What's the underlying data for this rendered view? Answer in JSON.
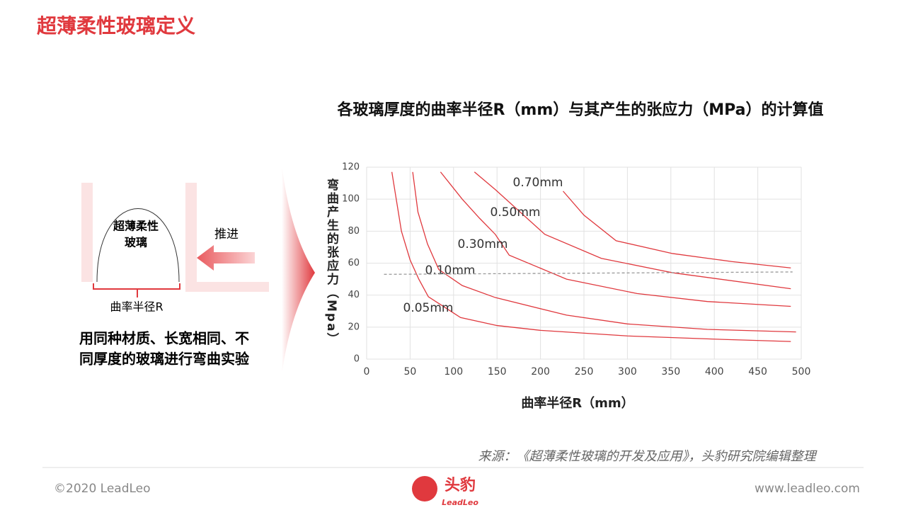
{
  "header": {
    "title": "超薄柔性玻璃定义"
  },
  "diagram": {
    "glass_label": [
      "超薄柔性",
      "玻璃"
    ],
    "push_label": "推进",
    "radius_label": "曲率半径R",
    "caption": [
      "用同种材质、长宽相同、不",
      "同厚度的玻璃进行弯曲实验"
    ]
  },
  "chart_data": {
    "type": "line",
    "title": "各玻璃厚度的曲率半径R（mm）与其产生的张应力（MPa）的计算值",
    "x_label": "曲率半径R（mm）",
    "y_label": "弯曲产生的张应力（Mpa）",
    "xlim": [
      0,
      500
    ],
    "xticks": [
      0,
      50,
      100,
      150,
      200,
      250,
      300,
      350,
      400,
      450,
      500
    ],
    "ylim": [
      0,
      120
    ],
    "yticks": [
      0,
      20,
      40,
      60,
      80,
      100,
      120
    ],
    "grid": true,
    "series": [
      {
        "name": "0.05mm",
        "color": "#e0393e",
        "x": [
          29,
          40,
          50,
          60,
          71,
          108,
          150,
          200,
          300,
          400,
          488
        ],
        "values": [
          117,
          80,
          62,
          50,
          39,
          26,
          21,
          18,
          14.5,
          12.5,
          11
        ]
      },
      {
        "name": "0.10mm",
        "color": "#e0393e",
        "x": [
          53,
          59,
          70,
          83,
          110,
          148,
          230,
          300,
          392,
          494
        ],
        "values": [
          117,
          92,
          72,
          56,
          46,
          38.5,
          27.5,
          22,
          18.6,
          17
        ]
      },
      {
        "name": "0.30mm",
        "color": "#e0393e",
        "x": [
          85,
          110,
          130,
          148,
          164,
          230,
          311,
          392,
          488
        ],
        "values": [
          117,
          100,
          88,
          78,
          65,
          50,
          41,
          36,
          33
        ]
      },
      {
        "name": "0.50mm",
        "color": "#e0393e",
        "x": [
          124,
          148,
          205,
          270,
          352,
          488
        ],
        "values": [
          117,
          106,
          78,
          63,
          54,
          44
        ]
      },
      {
        "name": "0.70mm",
        "color": "#e0393e",
        "x": [
          226,
          250,
          287,
          352,
          420,
          488
        ],
        "values": [
          105,
          90,
          74,
          66,
          61,
          57
        ]
      },
      {
        "color": "#999999",
        "line_style": "dashed",
        "x": [
          20,
          490
        ],
        "values": [
          53,
          54.5
        ]
      }
    ]
  },
  "source": "来源：《超薄柔性玻璃的开发及应用》，头豹研究院编辑整理",
  "footer": {
    "copyright": "©2020 LeadLeo",
    "logo": "头豹",
    "logo_sub": "LeadLeo",
    "url": "www.leadleo.com"
  }
}
